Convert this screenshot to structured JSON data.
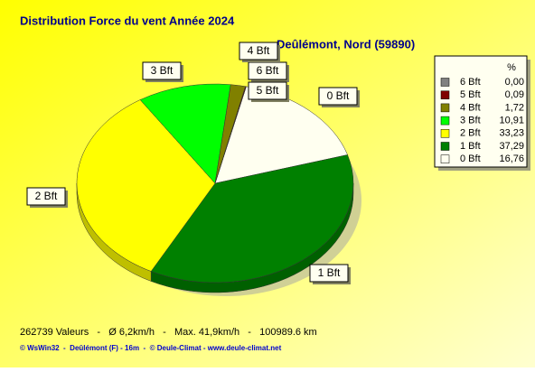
{
  "chart_data": {
    "type": "pie",
    "title": "Distribution Force du vent  Année 2024",
    "subtitle": "Deûlémont, Nord (59890)",
    "legend_header": "%",
    "categories": [
      "6 Bft",
      "5 Bft",
      "4 Bft",
      "3 Bft",
      "2 Bft",
      "1 Bft",
      "0 Bft"
    ],
    "values": [
      0.0,
      0.09,
      1.72,
      10.91,
      33.23,
      37.29,
      16.76
    ],
    "value_labels": [
      "0,00",
      "0,09",
      "1,72",
      "10,91",
      "33,23",
      "37,29",
      "16,76"
    ],
    "colors": [
      "#808080",
      "#800000",
      "#808000",
      "#00ff00",
      "#ffff00",
      "#008000",
      "#fffff0"
    ],
    "legend": "right",
    "footer": "262739 Valeurs   -   Ø 6,2km/h   -   Max. 41,9km/h   -   100989.6 km",
    "credit": "© WsWin32  -  Deûlémont (F) - 16m  -  © Deule-Climat - www.deule-climat.net"
  }
}
